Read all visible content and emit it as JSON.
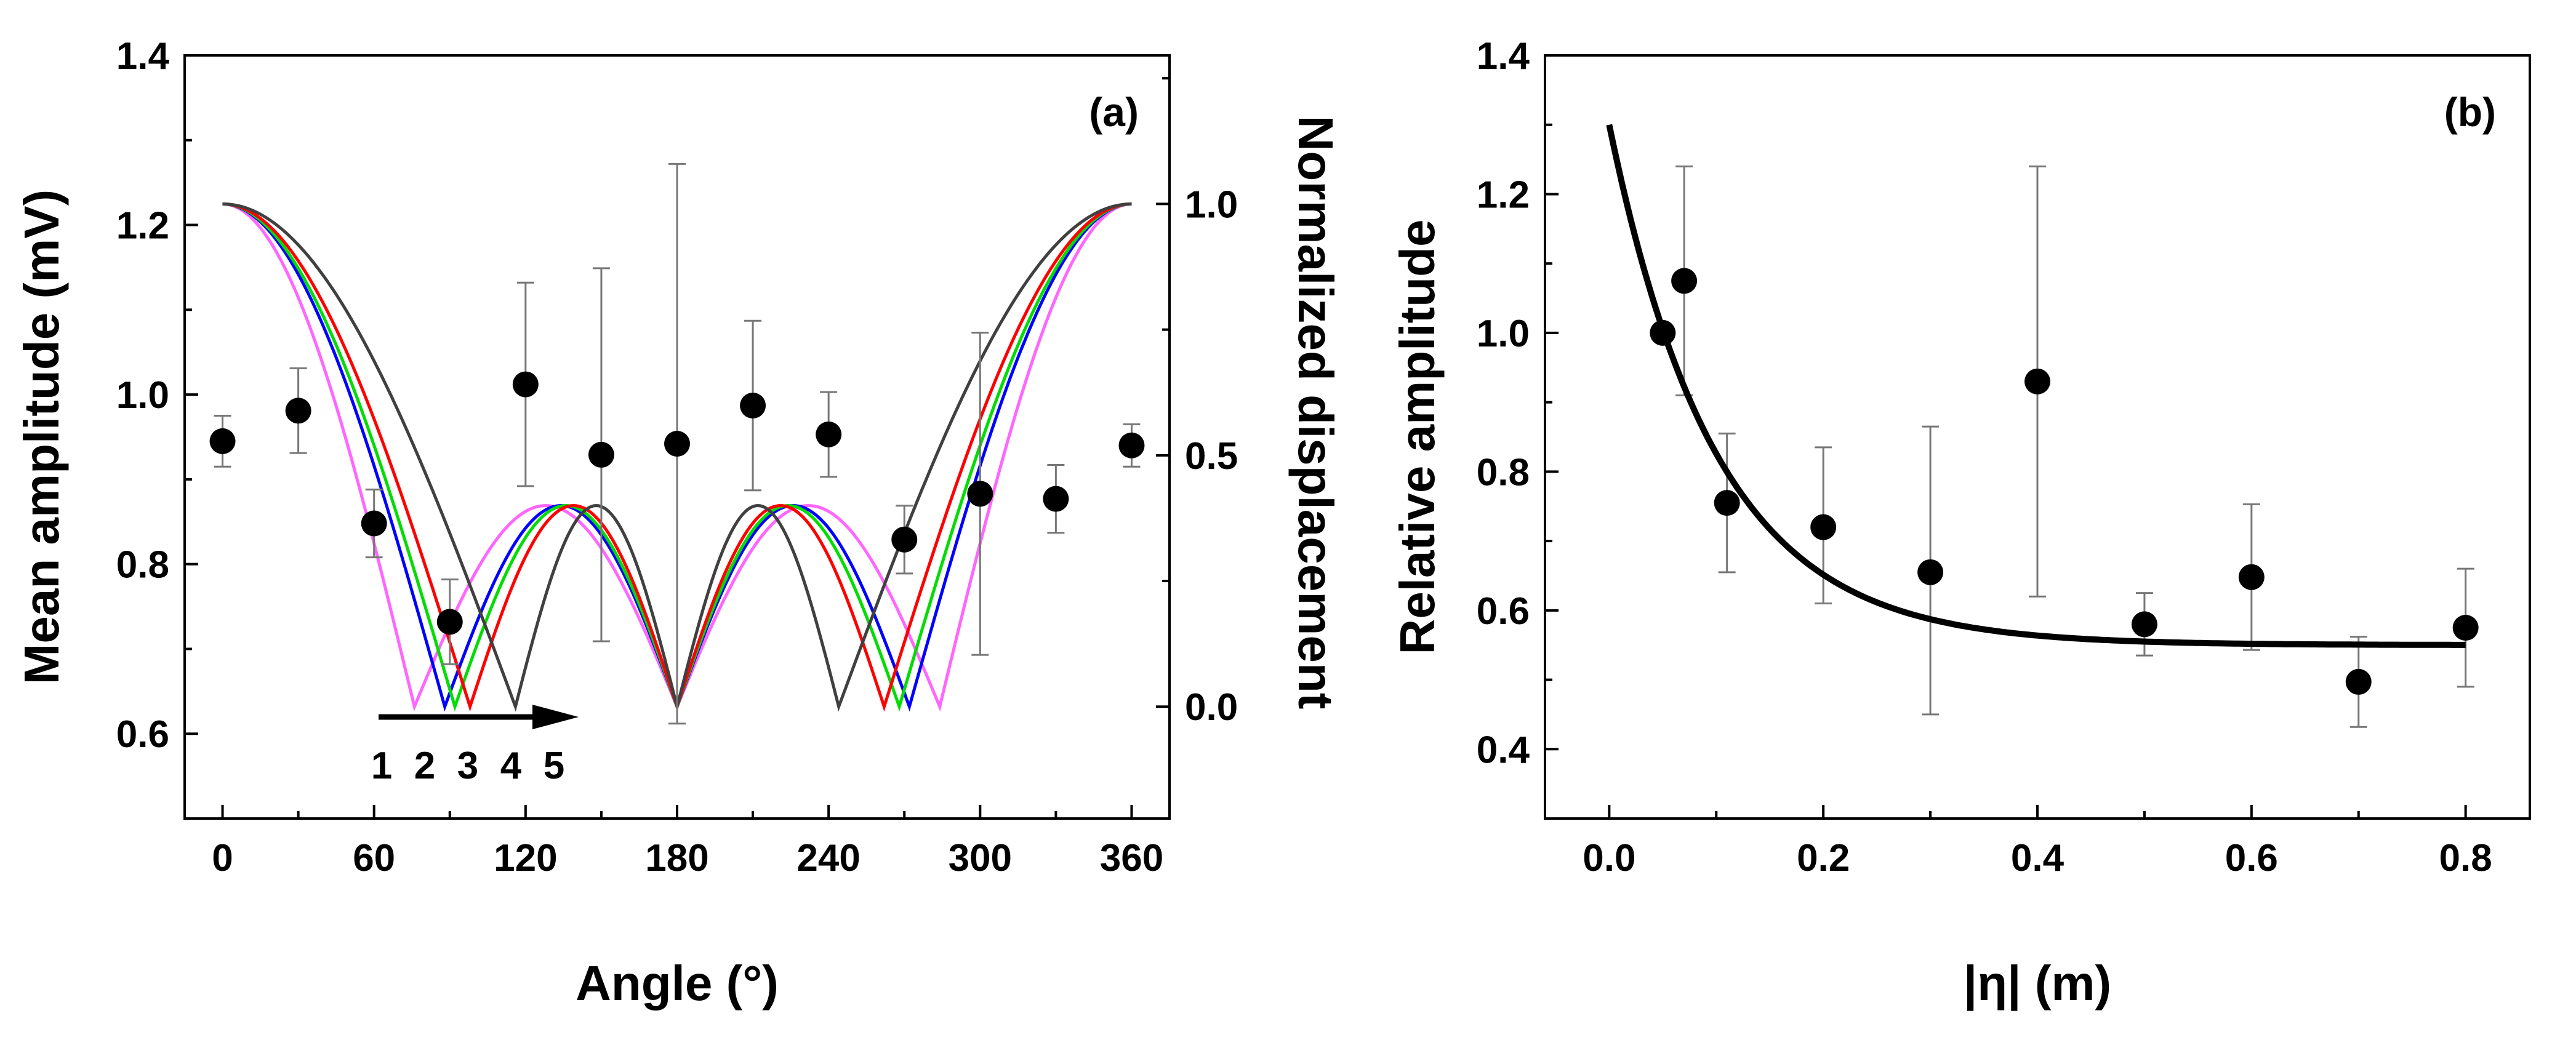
{
  "chart_data": [
    {
      "panel": "(a)",
      "type": "scatter",
      "title": "",
      "xlabel": "Angle (°)",
      "ylabel": "Mean amplitude (mV)",
      "y2label": "Normalized displacement",
      "xlim": [
        -15,
        375
      ],
      "ylim": [
        0.5,
        1.4
      ],
      "y2lim": [
        -0.2225,
        1.2955
      ],
      "xticks": [
        0,
        60,
        120,
        180,
        240,
        300,
        360
      ],
      "yticks": [
        0.6,
        0.8,
        1.0,
        1.2,
        1.4
      ],
      "y2ticks": [
        0.0,
        0.5,
        1.0
      ],
      "x_tick_labels": [
        "0",
        "60",
        "120",
        "180",
        "240",
        "300",
        "360"
      ],
      "y_tick_labels": [
        "0.6",
        "0.8",
        "1.0",
        "1.2",
        "1.4"
      ],
      "y2_tick_labels": [
        "0.0",
        "0.5",
        "1.0"
      ],
      "points": {
        "x": [
          0,
          30,
          60,
          90,
          120,
          150,
          180,
          210,
          240,
          270,
          300,
          330,
          360
        ],
        "y": [
          0.945,
          0.981,
          0.848,
          0.732,
          1.012,
          0.929,
          0.942,
          0.987,
          0.953,
          0.829,
          0.883,
          0.877,
          0.94
        ],
        "err_low": [
          0.03,
          0.05,
          0.04,
          0.05,
          0.12,
          0.22,
          0.33,
          0.1,
          0.05,
          0.04,
          0.19,
          0.04,
          0.025
        ],
        "err_high": [
          0.03,
          0.05,
          0.04,
          0.05,
          0.12,
          0.22,
          0.33,
          0.1,
          0.05,
          0.04,
          0.19,
          0.04,
          0.025
        ]
      },
      "curves": [
        {
          "name": "1",
          "color": "#ff66ff",
          "dip": 76,
          "secondary_level": 0.4
        },
        {
          "name": "2",
          "color": "#0000ff",
          "dip": 88,
          "secondary_level": 0.4
        },
        {
          "name": "3",
          "color": "#00dd00",
          "dip": 92,
          "secondary_level": 0.4
        },
        {
          "name": "4",
          "color": "#ff0000",
          "dip": 98,
          "secondary_level": 0.4
        },
        {
          "name": "5",
          "color": "#404040",
          "dip": 116,
          "secondary_level": 0.4
        }
      ],
      "sequence_labels": [
        "1",
        "2",
        "3",
        "4",
        "5"
      ],
      "legend": "none"
    },
    {
      "panel": "(b)",
      "type": "scatter",
      "title": "",
      "xlabel": "|η| (m)",
      "ylabel": "Relative amplitude",
      "xlim": [
        -0.06,
        0.86
      ],
      "ylim": [
        0.3,
        1.4
      ],
      "xticks": [
        0.0,
        0.2,
        0.4,
        0.6,
        0.8
      ],
      "yticks": [
        0.4,
        0.6,
        0.8,
        1.0,
        1.2,
        1.4
      ],
      "x_tick_labels": [
        "0.0",
        "0.2",
        "0.4",
        "0.6",
        "0.8"
      ],
      "y_tick_labels": [
        "0.4",
        "0.6",
        "0.8",
        "1.0",
        "1.2",
        "1.4"
      ],
      "points": {
        "x": [
          0.05,
          0.07,
          0.11,
          0.2,
          0.3,
          0.4,
          0.5,
          0.6,
          0.7,
          0.8
        ],
        "y": [
          1.0,
          1.075,
          0.755,
          0.72,
          0.655,
          0.93,
          0.58,
          0.648,
          0.497,
          0.575
        ],
        "err_low": [
          0.0,
          0.165,
          0.1,
          0.11,
          0.205,
          0.31,
          0.045,
          0.105,
          0.065,
          0.085
        ],
        "err_high": [
          0.0,
          0.165,
          0.1,
          0.115,
          0.21,
          0.31,
          0.045,
          0.105,
          0.065,
          0.085
        ]
      },
      "fit": {
        "type": "exponential_decay",
        "y0": 0.55,
        "A": 0.75,
        "t": 0.1,
        "x_range": [
          0.0,
          0.8
        ]
      },
      "legend": "none"
    }
  ]
}
